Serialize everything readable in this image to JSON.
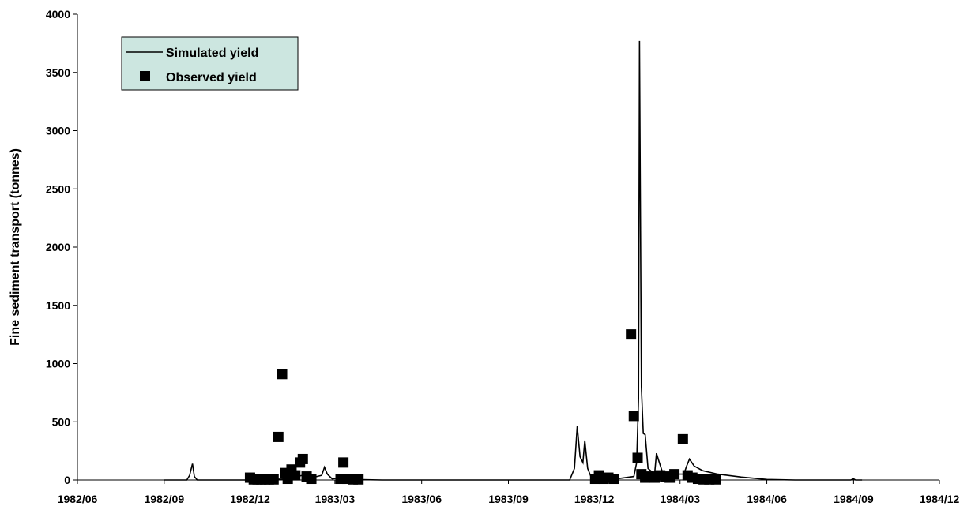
{
  "chart_data": {
    "type": "line",
    "title": "",
    "xlabel": "",
    "ylabel": "Fine sediment transport (tonnes)",
    "x_tick_labels": [
      "1982/06",
      "1982/09",
      "1982/12",
      "1983/03",
      "1983/06",
      "1983/09",
      "1983/12",
      "1984/03",
      "1984/06",
      "1984/09",
      "1984/12"
    ],
    "y_tick_labels": [
      "0",
      "500",
      "1000",
      "1500",
      "2000",
      "2500",
      "3000",
      "3500",
      "4000"
    ],
    "ylim": [
      0,
      4000
    ],
    "xlim": [
      "1982/06",
      "1984/12"
    ],
    "grid": false,
    "legend_position": "top-left",
    "series": [
      {
        "name": "Simulated yield",
        "kind": "line",
        "color": "#000000",
        "points": [
          [
            "1982-09-01",
            0
          ],
          [
            "1982-09-25",
            0
          ],
          [
            "1982-09-28",
            40
          ],
          [
            "1982-10-01",
            140
          ],
          [
            "1982-10-03",
            30
          ],
          [
            "1982-10-06",
            0
          ],
          [
            "1982-12-10",
            0
          ],
          [
            "1983-01-10",
            10
          ],
          [
            "1983-01-20",
            30
          ],
          [
            "1983-02-01",
            50
          ],
          [
            "1983-02-05",
            20
          ],
          [
            "1983-02-15",
            40
          ],
          [
            "1983-02-18",
            110
          ],
          [
            "1983-02-21",
            50
          ],
          [
            "1983-02-26",
            10
          ],
          [
            "1983-03-10",
            20
          ],
          [
            "1983-03-20",
            5
          ],
          [
            "1983-04-20",
            0
          ],
          [
            "1983-11-05",
            0
          ],
          [
            "1983-11-10",
            100
          ],
          [
            "1983-11-13",
            460
          ],
          [
            "1983-11-16",
            200
          ],
          [
            "1983-11-19",
            150
          ],
          [
            "1983-11-21",
            340
          ],
          [
            "1983-11-24",
            100
          ],
          [
            "1983-11-28",
            20
          ],
          [
            "1983-12-20",
            5
          ],
          [
            "1984-01-12",
            30
          ],
          [
            "1984-01-15",
            150
          ],
          [
            "1984-01-17",
            700
          ],
          [
            "1984-01-18",
            3770
          ],
          [
            "1984-01-20",
            800
          ],
          [
            "1984-01-22",
            400
          ],
          [
            "1984-01-24",
            390
          ],
          [
            "1984-01-27",
            100
          ],
          [
            "1984-02-03",
            50
          ],
          [
            "1984-02-05",
            230
          ],
          [
            "1984-02-08",
            150
          ],
          [
            "1984-02-12",
            50
          ],
          [
            "1984-03-05",
            50
          ],
          [
            "1984-03-08",
            120
          ],
          [
            "1984-03-11",
            180
          ],
          [
            "1984-03-16",
            120
          ],
          [
            "1984-03-25",
            80
          ],
          [
            "1984-04-10",
            50
          ],
          [
            "1984-05-05",
            25
          ],
          [
            "1984-06-01",
            5
          ],
          [
            "1984-07-01",
            0
          ],
          [
            "1984-08-29",
            0
          ],
          [
            "1984-09-01",
            10
          ],
          [
            "1984-09-03",
            0
          ],
          [
            "1984-09-10",
            0
          ]
        ]
      },
      {
        "name": "Observed yield",
        "kind": "scatter",
        "marker": "square",
        "color": "#000000",
        "points": [
          [
            "1982-12-01",
            20
          ],
          [
            "1982-12-05",
            5
          ],
          [
            "1982-12-09",
            5
          ],
          [
            "1982-12-13",
            5
          ],
          [
            "1982-12-17",
            5
          ],
          [
            "1982-12-21",
            5
          ],
          [
            "1982-12-26",
            5
          ],
          [
            "1982-12-31",
            370
          ],
          [
            "1983-01-04",
            910
          ],
          [
            "1983-01-07",
            60
          ],
          [
            "1983-01-10",
            10
          ],
          [
            "1983-01-14",
            90
          ],
          [
            "1983-01-18",
            40
          ],
          [
            "1983-01-23",
            150
          ],
          [
            "1983-01-26",
            180
          ],
          [
            "1983-01-30",
            30
          ],
          [
            "1983-02-04",
            10
          ],
          [
            "1983-03-10",
            150
          ],
          [
            "1983-03-07",
            10
          ],
          [
            "1983-03-14",
            10
          ],
          [
            "1983-03-20",
            5
          ],
          [
            "1983-03-26",
            5
          ],
          [
            "1983-12-02",
            10
          ],
          [
            "1983-12-06",
            40
          ],
          [
            "1983-12-11",
            10
          ],
          [
            "1983-12-16",
            20
          ],
          [
            "1983-12-22",
            10
          ],
          [
            "1984-01-09",
            1250
          ],
          [
            "1984-01-12",
            550
          ],
          [
            "1984-01-16",
            190
          ],
          [
            "1984-01-20",
            50
          ],
          [
            "1984-01-24",
            20
          ],
          [
            "1984-01-29",
            30
          ],
          [
            "1984-02-03",
            20
          ],
          [
            "1984-02-09",
            40
          ],
          [
            "1984-02-14",
            30
          ],
          [
            "1984-02-19",
            20
          ],
          [
            "1984-02-24",
            50
          ],
          [
            "1984-03-04",
            350
          ],
          [
            "1984-03-09",
            40
          ],
          [
            "1984-03-14",
            20
          ],
          [
            "1984-03-20",
            10
          ],
          [
            "1984-03-26",
            5
          ],
          [
            "1984-04-01",
            5
          ],
          [
            "1984-04-08",
            5
          ]
        ]
      }
    ]
  }
}
